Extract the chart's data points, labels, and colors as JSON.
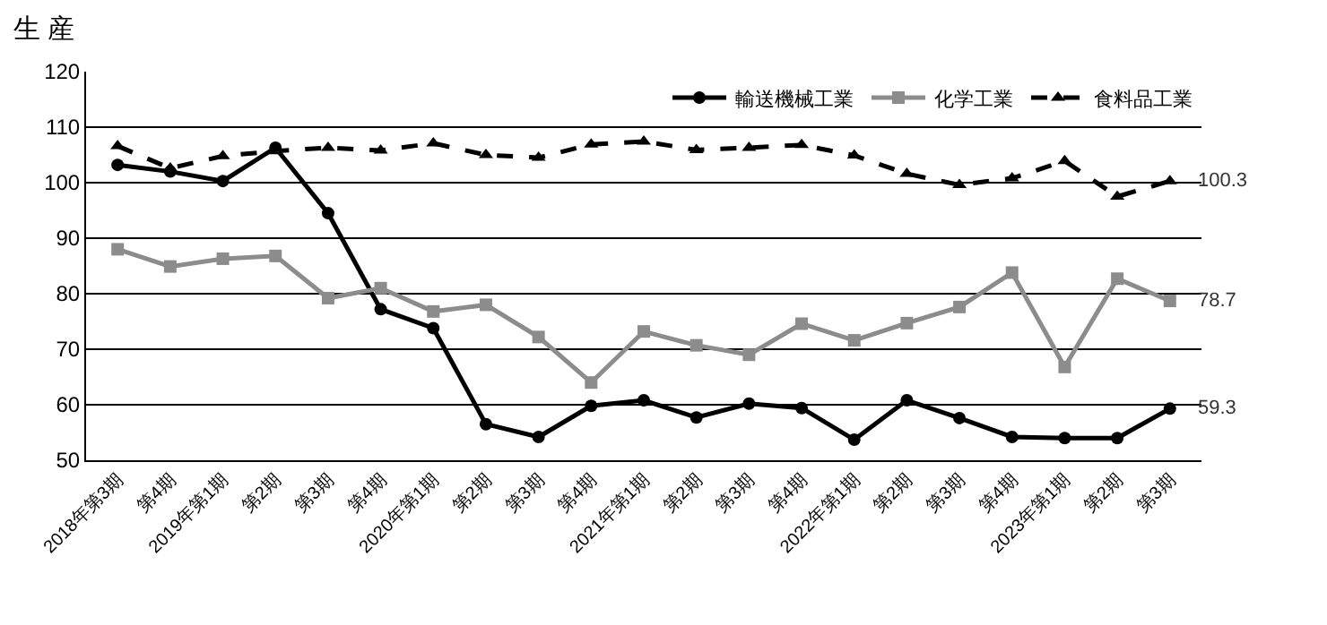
{
  "chart_data": {
    "type": "line",
    "title": "生 産",
    "categories": [
      "2018年第3期",
      "第4期",
      "2019年第1期",
      "第2期",
      "第3期",
      "第4期",
      "2020年第1期",
      "第2期",
      "第3期",
      "第4期",
      "2021年第1期",
      "第2期",
      "第3期",
      "第4期",
      "2022年第1期",
      "第2期",
      "第3期",
      "第4期",
      "2023年第1期",
      "第2期",
      "第3期"
    ],
    "series": [
      {
        "name": "輸送機械工業",
        "color": "#000000",
        "marker": "circle",
        "line_style": "solid",
        "value_labels": [
          null,
          null,
          null,
          null,
          null,
          null,
          null,
          null,
          null,
          null,
          null,
          null,
          null,
          null,
          null,
          null,
          null,
          null,
          null,
          null,
          "59.3"
        ],
        "values": [
          103.2,
          102,
          100.3,
          106.3,
          94.5,
          77.2,
          73.8,
          56.5,
          54.2,
          59.8,
          60.8,
          57.7,
          60.2,
          59.4,
          53.7,
          60.8,
          57.6,
          54.2,
          54.0,
          54.0,
          59.3
        ]
      },
      {
        "name": "化学工業",
        "color": "#8c8c8c",
        "marker": "square",
        "line_style": "solid",
        "value_labels": [
          null,
          null,
          null,
          null,
          null,
          null,
          null,
          null,
          null,
          null,
          null,
          null,
          null,
          null,
          null,
          null,
          null,
          null,
          null,
          null,
          "78.7"
        ],
        "values": [
          88,
          84.9,
          86.3,
          86.8,
          79.2,
          81,
          76.8,
          78,
          72.2,
          64,
          73.2,
          70.7,
          69,
          74.6,
          71.6,
          74.7,
          77.6,
          83.8,
          66.8,
          82.7,
          78.7
        ]
      },
      {
        "name": "食料品工業",
        "color": "#000000",
        "marker": "triangle",
        "line_style": "dashed",
        "value_labels": [
          null,
          null,
          null,
          null,
          null,
          null,
          null,
          null,
          null,
          null,
          null,
          null,
          null,
          null,
          null,
          null,
          null,
          null,
          null,
          null,
          "100.3"
        ],
        "values": [
          106.6,
          102.6,
          104.8,
          105.7,
          106.3,
          105.8,
          107.1,
          105,
          104.5,
          106.9,
          107.4,
          105.9,
          106.3,
          106.8,
          104.9,
          101.6,
          99.6,
          100.8,
          103.9,
          97.5,
          100.3
        ]
      }
    ],
    "ylim": [
      50,
      120
    ],
    "yticks": [
      50,
      60,
      70,
      80,
      90,
      100,
      110,
      120
    ],
    "grid": "y",
    "legend": "top right"
  }
}
